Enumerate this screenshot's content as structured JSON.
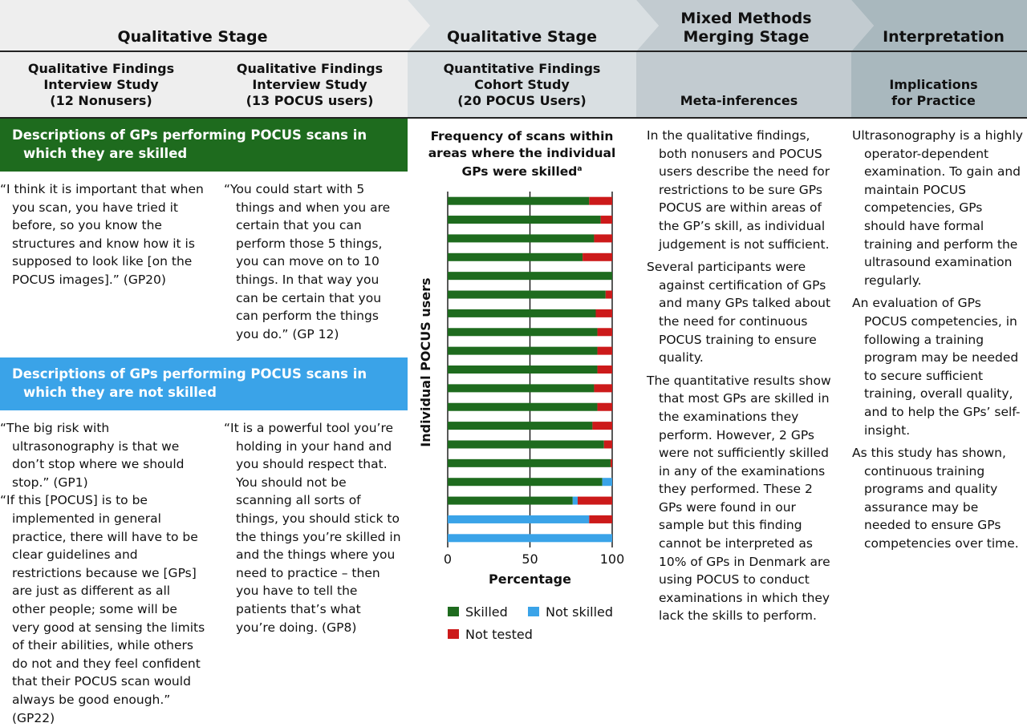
{
  "stages": [
    {
      "title": "Qualitative Stage"
    },
    {
      "title": "Qualitative Stage"
    },
    {
      "title": "Mixed Methods Merging Stage"
    },
    {
      "title": "Interpretation"
    }
  ],
  "columns": {
    "col1": "Qualitative Findings\nInterview Study\n(12 Nonusers)",
    "col2": "Qualitative Findings\nInterview Study\n(13 POCUS users)",
    "col3": "Quantitative Findings\nCohort Study\n(20 POCUS Users)",
    "col4": "Meta-inferences",
    "col5": "Implications\nfor Practice"
  },
  "sections": {
    "skilled": {
      "heading": "Descriptions of GPs performing POCUS scans in which they are skilled",
      "color": "#1e6b1e",
      "quote_left": [
        "“I think it is important that when you scan, you have tried it before, so you know the structures and know how it is supposed to look like [on the POCUS images].” (GP20)"
      ],
      "quote_right": [
        "“You could start with 5 things and when you are certain that you can perform those 5 things, you can move on to 10 things. In that way you can be certain that you can perform the things you do.” (GP 12)"
      ]
    },
    "not_skilled": {
      "heading": "Descriptions of GPs performing POCUS scans in which they are not skilled",
      "color": "#3aa3e8",
      "quote_left": [
        "“The big risk with ultrasonography is that we don’t stop where we should stop.” (GP1)",
        "“If this [POCUS] is to be implemented in general practice, there will have to be clear guidelines and restrictions because we [GPs] are just as different as all other people; some will be very good at sensing the limits of their abilities, while others do not and they feel confident that their POCUS scan would always be good enough.” (GP22)"
      ],
      "quote_right": [
        "“It is a powerful tool you’re holding in your hand and you should respect that. You should not be scanning all sorts of things, you should stick to the things you’re skilled in and the things where you need to practice – then you have to tell the patients that’s what you’re doing. (GP8)"
      ]
    }
  },
  "meta_inferences": [
    "In the qualitative findings, both nonusers and POCUS users describe the need for restrictions to be sure GPs POCUS are within areas of the GP’s skill, as individual judgement is not sufficient.",
    "Several participants were against certification of GPs and many GPs talked about the need for continuous POCUS training to ensure quality.",
    "The quantitative results show that most GPs are skilled in the examinations they perform. However, 2 GPs were not sufficiently skilled in any of the examinations they performed. These 2 GPs were found in our sample but this finding cannot be interpreted as 10% of GPs in Denmark are using POCUS to conduct examinations in which they lack the skills to perform."
  ],
  "implications": [
    "Ultrasonography is a highly operator-dependent examination. To gain and maintain POCUS competencies, GPs should have formal training and perform the ultrasound examination regularly.",
    "An evaluation of GPs POCUS competencies, in following a training program may be needed to secure sufficient training, overall quality, and to help the GPs’ self-insight.",
    "As this study has shown, continuous training programs and quality assurance may be needed to ensure GPs competencies over time."
  ],
  "chart_data": {
    "type": "bar",
    "orientation": "horizontal",
    "stacked": true,
    "title": "Frequency of scans within areas where the individual GPs were skilled",
    "title_superscript": "a",
    "xlabel": "Percentage",
    "ylabel": "Individual POCUS users",
    "xlim": [
      0,
      100
    ],
    "xticks": [
      "0",
      "50",
      "100"
    ],
    "grid": true,
    "legend_position": "bottom",
    "colors": {
      "Skilled": "#1e6b1e",
      "Not skilled": "#3aa3e8",
      "Not tested": "#cc1a1a"
    },
    "series": [
      {
        "name": "Skilled",
        "values": [
          86,
          93,
          89,
          82,
          100,
          96,
          90,
          91,
          91,
          91,
          89,
          91,
          88,
          95,
          99,
          94,
          76,
          0,
          0
        ]
      },
      {
        "name": "Not skilled",
        "values": [
          0,
          0,
          0,
          0,
          0,
          0,
          0,
          0,
          0,
          0,
          0,
          0,
          0,
          0,
          0,
          6,
          3,
          86,
          100
        ]
      },
      {
        "name": "Not tested",
        "values": [
          14,
          7,
          11,
          18,
          0,
          4,
          10,
          9,
          9,
          9,
          11,
          9,
          12,
          5,
          1,
          0,
          21,
          14,
          0
        ]
      }
    ]
  }
}
